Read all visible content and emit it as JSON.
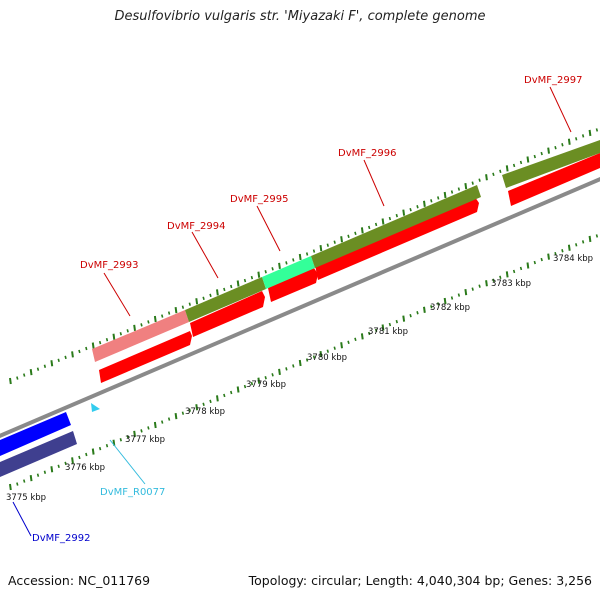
{
  "title": "Desulfovibrio vulgaris str. 'Miyazaki F', complete genome",
  "footer": {
    "accession": "Accession: NC_011769",
    "summary": "Topology: circular; Length: 4,040,304 bp; Genes: 3,256"
  },
  "colors": {
    "backbone": "#8a8a8a",
    "tick": "#2a7a1a",
    "gene_red": "#ff0000",
    "gene_olive": "#6b8e23",
    "gene_pink": "#f08080",
    "gene_teal": "#33ff99",
    "gene_blue": "#0000ff",
    "gene_navy": "#3f3f8f",
    "rna_cyan": "#33ccee"
  },
  "ruler": [
    "3775 kbp",
    "3776 kbp",
    "3777 kbp",
    "3778 kbp",
    "3779 kbp",
    "3780 kbp",
    "3781 kbp",
    "3782 kbp",
    "3783 kbp",
    "3784 kbp"
  ],
  "genes": [
    {
      "label": "DvMF_2992",
      "color": "#0000cc"
    },
    {
      "label": "DvMF_R0077",
      "color": "#33bbdd"
    },
    {
      "label": "DvMF_2993",
      "color": "#cc0000"
    },
    {
      "label": "DvMF_2994",
      "color": "#cc0000"
    },
    {
      "label": "DvMF_2995",
      "color": "#cc0000"
    },
    {
      "label": "DvMF_2996",
      "color": "#cc0000"
    },
    {
      "label": "DvMF_2997",
      "color": "#cc0000"
    }
  ]
}
